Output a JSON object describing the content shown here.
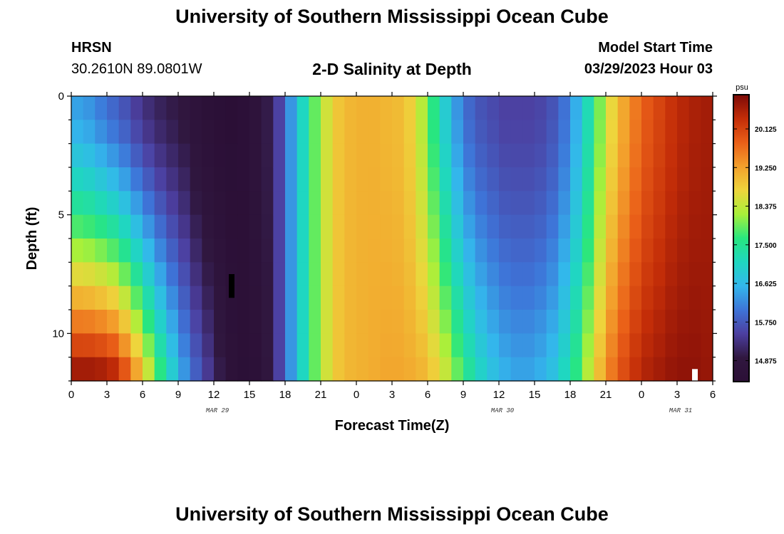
{
  "page": {
    "title_top": "University of Southern Mississippi Ocean Cube",
    "title_bottom": "University of Southern Mississippi Ocean Cube",
    "station_id": "HRSN",
    "station_coords": "30.2610N  89.0801W",
    "plot_title": "2-D Salinity at Depth",
    "start_label": "Model Start Time",
    "start_value": "03/29/2023 Hour 03"
  },
  "colors": {
    "scale": [
      "#2b0f36",
      "#30173f",
      "#4c3fa0",
      "#3e74d8",
      "#33b7ec",
      "#1fd7c0",
      "#28e67f",
      "#a8f03a",
      "#eed53c",
      "#f3a02c",
      "#ea5f18",
      "#c32d08",
      "#7c0a08"
    ]
  },
  "chart_data": {
    "type": "heatmap",
    "title": "2-D Salinity at Depth",
    "xlabel": "Forecast Time(Z)",
    "ylabel": "Depth (ft)",
    "x_range_hours": [
      0,
      54
    ],
    "y_range_ft": [
      0,
      12
    ],
    "x_ticks": [
      {
        "hour": 0,
        "label": "0"
      },
      {
        "hour": 3,
        "label": "3"
      },
      {
        "hour": 6,
        "label": "6"
      },
      {
        "hour": 9,
        "label": "9"
      },
      {
        "hour": 12,
        "label": "12"
      },
      {
        "hour": 15,
        "label": "15"
      },
      {
        "hour": 18,
        "label": "18"
      },
      {
        "hour": 21,
        "label": "21"
      },
      {
        "hour": 24,
        "label": "0"
      },
      {
        "hour": 27,
        "label": "3"
      },
      {
        "hour": 30,
        "label": "6"
      },
      {
        "hour": 33,
        "label": "9"
      },
      {
        "hour": 36,
        "label": "12"
      },
      {
        "hour": 39,
        "label": "15"
      },
      {
        "hour": 42,
        "label": "18"
      },
      {
        "hour": 45,
        "label": "21"
      },
      {
        "hour": 48,
        "label": "0"
      },
      {
        "hour": 51,
        "label": "3"
      },
      {
        "hour": 54,
        "label": "6"
      }
    ],
    "date_labels": [
      {
        "hour": 12.3,
        "label": "MAR 29"
      },
      {
        "hour": 36.3,
        "label": "MAR 30"
      },
      {
        "hour": 51.3,
        "label": "MAR 31"
      }
    ],
    "y_ticks": [
      {
        "depth": 0,
        "label": "0"
      },
      {
        "depth": 5,
        "label": "5"
      },
      {
        "depth": 10,
        "label": "10"
      }
    ],
    "colorbar": {
      "unit": "psu",
      "min": 14.4,
      "max": 20.9,
      "tick_values": [
        14.875,
        15.75,
        16.625,
        17.5,
        18.375,
        19.25,
        20.125
      ],
      "tick_labels": [
        "14.875",
        "15.750",
        "16.625",
        "17.500",
        "18.375",
        "19.250",
        "20.125"
      ]
    },
    "depth_levels_ft": [
      0,
      1,
      2,
      3,
      4,
      5,
      6,
      7,
      8,
      9,
      10,
      11
    ],
    "time_step_hours": 1,
    "salinity_profile": {
      "surface": [
        16.4,
        16.3,
        16.1,
        15.9,
        15.7,
        15.45,
        15.25,
        15.1,
        15.0,
        14.9,
        14.7,
        14.55,
        14.45,
        14.42,
        14.5,
        14.7,
        15.0,
        15.5,
        16.3,
        17.1,
        17.9,
        18.5,
        18.9,
        19.05,
        19.1,
        19.1,
        19.05,
        19.0,
        18.8,
        18.3,
        17.6,
        16.9,
        16.3,
        15.9,
        15.7,
        15.6,
        15.5,
        15.5,
        15.5,
        15.55,
        15.7,
        16.0,
        16.5,
        17.2,
        18.0,
        18.7,
        19.2,
        19.6,
        19.9,
        20.1,
        20.3,
        20.45,
        20.55,
        20.6
      ],
      "bottom": [
        20.6,
        20.6,
        20.55,
        20.4,
        19.9,
        19.2,
        18.4,
        17.6,
        16.9,
        16.3,
        15.8,
        15.4,
        15.0,
        14.6,
        14.45,
        14.55,
        14.9,
        15.5,
        16.3,
        17.1,
        17.9,
        18.5,
        18.9,
        19.05,
        19.1,
        19.15,
        19.2,
        19.2,
        19.15,
        19.05,
        18.8,
        18.4,
        17.9,
        17.4,
        17.0,
        16.7,
        16.5,
        16.4,
        16.4,
        16.5,
        16.7,
        17.1,
        17.6,
        18.3,
        19.0,
        19.6,
        20.0,
        20.3,
        20.5,
        20.6,
        20.7,
        20.75,
        20.75,
        20.7
      ]
    },
    "markers": [
      {
        "hour": 13.5,
        "depth_start": 7.5,
        "depth_end": 8.5,
        "color": "#000000"
      },
      {
        "hour": 52.5,
        "depth_start": 11.5,
        "depth_end": 12.0,
        "color": "#ffffff"
      }
    ]
  }
}
